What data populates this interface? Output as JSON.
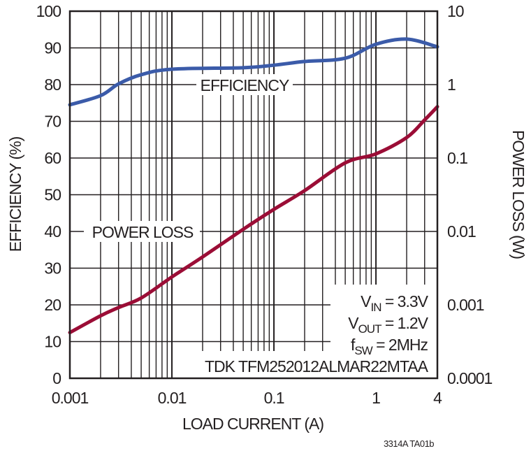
{
  "chart_data": {
    "type": "line",
    "xlabel": "LOAD CURRENT (A)",
    "ylabel": "EFFICIENCY (%)",
    "y2label": "POWER LOSS (W)",
    "xscale": "log",
    "xlim": [
      0.001,
      4
    ],
    "ylim": [
      0,
      100
    ],
    "y2scale": "log",
    "y2lim": [
      0.0001,
      10
    ],
    "grid": true,
    "x_ticks": [
      "0.001",
      "0.01",
      "0.1",
      "1",
      "4"
    ],
    "y_ticks": [
      "0",
      "10",
      "20",
      "30",
      "40",
      "50",
      "60",
      "70",
      "80",
      "90",
      "100"
    ],
    "y2_ticks": [
      "0.0001",
      "0.001",
      "0.01",
      "0.1",
      "1",
      "10"
    ],
    "series": [
      {
        "name": "EFFICIENCY",
        "axis": "left",
        "color": "#3b5ba9",
        "x": [
          0.001,
          0.002,
          0.003,
          0.005,
          0.01,
          0.05,
          0.1,
          0.2,
          0.5,
          1,
          2,
          4
        ],
        "y": [
          74.5,
          77.0,
          80.2,
          82.7,
          84.2,
          84.6,
          85.3,
          86.3,
          87.2,
          91.0,
          92.4,
          90.3
        ]
      },
      {
        "name": "POWER LOSS",
        "axis": "right",
        "color": "#9b0d36",
        "x": [
          0.001,
          0.002,
          0.003,
          0.005,
          0.01,
          0.02,
          0.05,
          0.1,
          0.2,
          0.5,
          1,
          2,
          3,
          4
        ],
        "y": [
          0.00042,
          0.00071,
          0.00092,
          0.00124,
          0.0024,
          0.0045,
          0.0107,
          0.02,
          0.036,
          0.086,
          0.114,
          0.19,
          0.33,
          0.5
        ]
      }
    ],
    "annotations": {
      "conditions": [
        {
          "main": "V",
          "sub": "IN",
          "rest": " = 3.3V"
        },
        {
          "main": "V",
          "sub": "OUT",
          "rest": " = 1.2V"
        },
        {
          "main": "f",
          "sub": "SW",
          "rest": " = 2MHz"
        }
      ],
      "part": "TDK TFM252012ALMAR22MTAA"
    },
    "figure_id": "3314A TA01b"
  }
}
